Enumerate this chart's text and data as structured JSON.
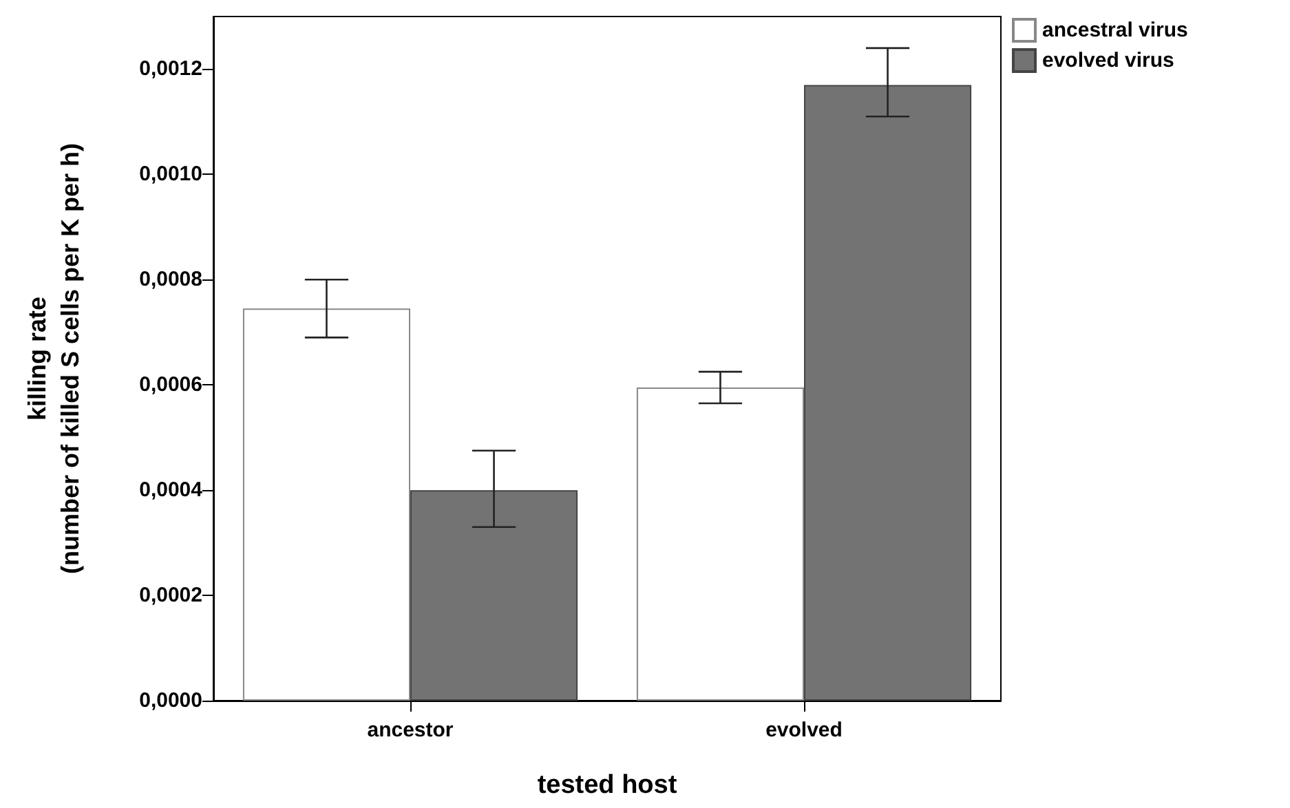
{
  "chart_data": {
    "type": "bar",
    "categories": [
      "ancestor",
      "evolved"
    ],
    "xlabel": "tested host",
    "ylabel": "killing rate\n(number of killed S cells per K per h)",
    "series": [
      {
        "name": "ancestral virus",
        "color": "#ffffff",
        "values": [
          0.000745,
          0.000595
        ],
        "errors": [
          [
            0.00069,
            0.0008
          ],
          [
            0.000565,
            0.000625
          ]
        ]
      },
      {
        "name": "evolved virus",
        "color": "#737373",
        "values": [
          0.0004,
          0.00117
        ],
        "errors": [
          [
            0.00033,
            0.000475
          ],
          [
            0.00111,
            0.00124
          ]
        ]
      }
    ],
    "ylim": [
      0,
      0.0013
    ],
    "yticks": [
      {
        "value": 0,
        "label": "0,0000"
      },
      {
        "value": 0.0002,
        "label": "0,0002"
      },
      {
        "value": 0.0004,
        "label": "0,0004"
      },
      {
        "value": 0.0006,
        "label": "0,0006"
      },
      {
        "value": 0.0008,
        "label": "0,0008"
      },
      {
        "value": 0.001,
        "label": "0,0010"
      },
      {
        "value": 0.0012,
        "label": "0,0012"
      }
    ],
    "grid": false,
    "legend": "top right"
  }
}
